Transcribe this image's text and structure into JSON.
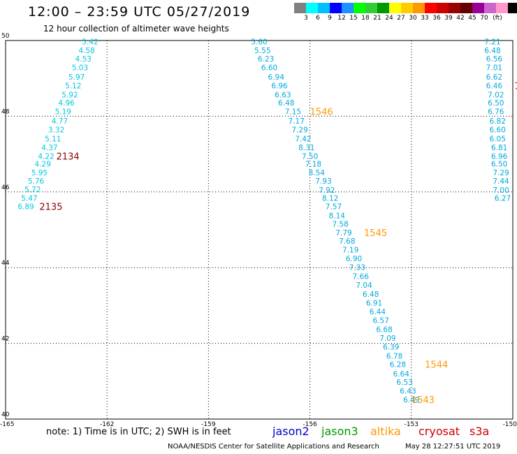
{
  "header": {
    "title": "12:00 – 23:59 UTC 05/27/2019",
    "subtitle": "12 hour collection of altimeter wave heights"
  },
  "legend": {
    "unit": "(ft)",
    "colors": [
      "#808080",
      "#00ffff",
      "#00bfff",
      "#0000ff",
      "#1e90ff",
      "#00ff00",
      "#32cd32",
      "#009900",
      "#ffff00",
      "#ffcc00",
      "#ff9900",
      "#ff0000",
      "#cc0000",
      "#990000",
      "#660000",
      "#990099",
      "#cc66cc",
      "#ff99cc",
      "#000000"
    ],
    "labels": [
      "3",
      "6",
      "9",
      "12",
      "15",
      "18",
      "21",
      "24",
      "27",
      "30",
      "33",
      "36",
      "39",
      "42",
      "45",
      "70"
    ]
  },
  "axes": {
    "lat_labels": [
      "50",
      "48",
      "46",
      "44",
      "42",
      "40"
    ],
    "lon_labels": [
      "-165",
      "-162",
      "-159",
      "-156",
      "-153",
      "-150"
    ]
  },
  "tracks": [
    {
      "satellite": "jason2",
      "color": "#00c8e0",
      "points": [
        {
          "lon": -162.5,
          "lat": 49.9,
          "swh": "5.42"
        },
        {
          "lon": -162.6,
          "lat": 49.67,
          "swh": "4.58"
        },
        {
          "lon": -162.7,
          "lat": 49.45,
          "swh": "4.53"
        },
        {
          "lon": -162.8,
          "lat": 49.22,
          "swh": "5.03"
        },
        {
          "lon": -162.9,
          "lat": 48.97,
          "swh": "5.97"
        },
        {
          "lon": -163.0,
          "lat": 48.74,
          "swh": "5.12"
        },
        {
          "lon": -163.1,
          "lat": 48.5,
          "swh": "5.92"
        },
        {
          "lon": -163.2,
          "lat": 48.28,
          "swh": "4.96"
        },
        {
          "lon": -163.3,
          "lat": 48.05,
          "swh": "5.19"
        },
        {
          "lon": -163.4,
          "lat": 47.8,
          "swh": "4.77"
        },
        {
          "lon": -163.5,
          "lat": 47.57,
          "swh": "3.32"
        },
        {
          "lon": -163.6,
          "lat": 47.33,
          "swh": "5.11"
        },
        {
          "lon": -163.7,
          "lat": 47.1,
          "swh": "4.37"
        },
        {
          "lon": -163.8,
          "lat": 46.87,
          "swh": "4.22"
        },
        {
          "lon": -163.9,
          "lat": 46.67,
          "swh": "4.29"
        },
        {
          "lon": -164.0,
          "lat": 46.44,
          "swh": "5.95"
        },
        {
          "lon": -164.1,
          "lat": 46.22,
          "swh": "5.76"
        },
        {
          "lon": -164.2,
          "lat": 46.0,
          "swh": "5.72"
        },
        {
          "lon": -164.3,
          "lat": 45.77,
          "swh": "5.47"
        },
        {
          "lon": -164.4,
          "lat": 45.54,
          "swh": "6.89"
        }
      ],
      "times": [
        {
          "lon": -163.5,
          "lat": 46.87,
          "text": "2134",
          "color": "#8b0000"
        },
        {
          "lon": -164.0,
          "lat": 45.54,
          "text": "2135",
          "color": "#8b0000"
        }
      ]
    },
    {
      "satellite": "jason2",
      "color": "#00aadd",
      "points": [
        {
          "lon": -157.5,
          "lat": 49.9,
          "swh": "5.60"
        },
        {
          "lon": -157.4,
          "lat": 49.67,
          "swh": "5.55"
        },
        {
          "lon": -157.3,
          "lat": 49.45,
          "swh": "6.23"
        },
        {
          "lon": -157.2,
          "lat": 49.22,
          "swh": "6.60"
        },
        {
          "lon": -157.0,
          "lat": 48.97,
          "swh": "6.94"
        },
        {
          "lon": -156.9,
          "lat": 48.74,
          "swh": "6.96"
        },
        {
          "lon": -156.8,
          "lat": 48.5,
          "swh": "6.63"
        },
        {
          "lon": -156.7,
          "lat": 48.28,
          "swh": "6.48"
        },
        {
          "lon": -156.5,
          "lat": 48.05,
          "swh": "7.15"
        },
        {
          "lon": -156.4,
          "lat": 47.8,
          "swh": "7.17"
        },
        {
          "lon": -156.3,
          "lat": 47.57,
          "swh": "7.29"
        },
        {
          "lon": -156.2,
          "lat": 47.33,
          "swh": "7.42"
        },
        {
          "lon": -156.1,
          "lat": 47.1,
          "swh": "8.31"
        },
        {
          "lon": -156.0,
          "lat": 46.87,
          "swh": "7.50"
        },
        {
          "lon": -155.9,
          "lat": 46.67,
          "swh": "7.18"
        },
        {
          "lon": -155.8,
          "lat": 46.44,
          "swh": "8.54"
        },
        {
          "lon": -155.6,
          "lat": 46.22,
          "swh": "7.93"
        },
        {
          "lon": -155.5,
          "lat": 45.98,
          "swh": "7.92"
        },
        {
          "lon": -155.4,
          "lat": 45.77,
          "swh": "8.12"
        },
        {
          "lon": -155.3,
          "lat": 45.54,
          "swh": "7.57"
        },
        {
          "lon": -155.2,
          "lat": 45.3,
          "swh": "8.14"
        },
        {
          "lon": -155.1,
          "lat": 45.08,
          "swh": "7.58"
        },
        {
          "lon": -155.0,
          "lat": 44.85,
          "swh": "7.79"
        },
        {
          "lon": -154.9,
          "lat": 44.63,
          "swh": "7.68"
        },
        {
          "lon": -154.8,
          "lat": 44.4,
          "swh": "7.19"
        },
        {
          "lon": -154.7,
          "lat": 44.17,
          "swh": "6.90"
        },
        {
          "lon": -154.6,
          "lat": 43.94,
          "swh": "7.33"
        },
        {
          "lon": -154.5,
          "lat": 43.7,
          "swh": "7.66"
        },
        {
          "lon": -154.4,
          "lat": 43.47,
          "swh": "7.04"
        },
        {
          "lon": -154.2,
          "lat": 43.23,
          "swh": "6.48"
        },
        {
          "lon": -154.1,
          "lat": 43.0,
          "swh": "6.91"
        },
        {
          "lon": -154.0,
          "lat": 42.77,
          "swh": "6.44"
        },
        {
          "lon": -153.9,
          "lat": 42.54,
          "swh": "6.57"
        },
        {
          "lon": -153.8,
          "lat": 42.3,
          "swh": "6.68"
        },
        {
          "lon": -153.7,
          "lat": 42.07,
          "swh": "7.09"
        },
        {
          "lon": -153.6,
          "lat": 41.84,
          "swh": "6.39"
        },
        {
          "lon": -153.5,
          "lat": 41.6,
          "swh": "6.78"
        },
        {
          "lon": -153.4,
          "lat": 41.37,
          "swh": "6.28"
        },
        {
          "lon": -153.3,
          "lat": 41.13,
          "swh": "6.64"
        },
        {
          "lon": -153.2,
          "lat": 40.9,
          "swh": "6.53"
        },
        {
          "lon": -153.1,
          "lat": 40.67,
          "swh": "6.43"
        },
        {
          "lon": -153.0,
          "lat": 40.44,
          "swh": "6.49"
        }
      ],
      "times": [
        {
          "lon": -156.0,
          "lat": 48.05,
          "text": "1546",
          "color": "#ff9900"
        },
        {
          "lon": -154.4,
          "lat": 44.85,
          "text": "1545",
          "color": "#ff9900"
        },
        {
          "lon": -152.6,
          "lat": 41.37,
          "text": "1544",
          "color": "#ff9900"
        },
        {
          "lon": -153.0,
          "lat": 40.44,
          "text": "1543",
          "color": "#ff9900"
        }
      ]
    },
    {
      "satellite": "jason2",
      "color": "#00aadd",
      "points": [
        {
          "lon": -150.6,
          "lat": 49.9,
          "swh": "7.21"
        },
        {
          "lon": -150.6,
          "lat": 49.67,
          "swh": "6.48"
        },
        {
          "lon": -150.55,
          "lat": 49.45,
          "swh": "6.56"
        },
        {
          "lon": -150.55,
          "lat": 49.22,
          "swh": "7.01"
        },
        {
          "lon": -150.55,
          "lat": 48.97,
          "swh": "6.62"
        },
        {
          "lon": -150.55,
          "lat": 48.74,
          "swh": "6.46"
        },
        {
          "lon": -150.5,
          "lat": 48.5,
          "swh": "7.02"
        },
        {
          "lon": -150.5,
          "lat": 48.28,
          "swh": "6.50"
        },
        {
          "lon": -150.5,
          "lat": 48.05,
          "swh": "6.76"
        },
        {
          "lon": -150.45,
          "lat": 47.8,
          "swh": "6.82"
        },
        {
          "lon": -150.45,
          "lat": 47.57,
          "swh": "6.60"
        },
        {
          "lon": -150.45,
          "lat": 47.33,
          "swh": "6.05"
        },
        {
          "lon": -150.4,
          "lat": 47.1,
          "swh": "6.81"
        },
        {
          "lon": -150.4,
          "lat": 46.87,
          "swh": "6.96"
        },
        {
          "lon": -150.4,
          "lat": 46.67,
          "swh": "6.50"
        },
        {
          "lon": -150.35,
          "lat": 46.44,
          "swh": "7.29"
        },
        {
          "lon": -150.35,
          "lat": 46.22,
          "swh": "7.44"
        },
        {
          "lon": -150.35,
          "lat": 45.98,
          "swh": "7.00"
        },
        {
          "lon": -150.3,
          "lat": 45.77,
          "swh": "6.27"
        }
      ],
      "times": [
        {
          "lon": -149.95,
          "lat": 48.74,
          "text": "1",
          "color": "#cc0000"
        }
      ]
    }
  ],
  "note": "note:  1) Time is in UTC;  2) SWH is in feet",
  "satellites": [
    {
      "name": "jason2",
      "color": "#0000cc",
      "left": 390
    },
    {
      "name": "jason3",
      "color": "#009900",
      "left": 460
    },
    {
      "name": "altika",
      "color": "#ff9900",
      "left": 530
    },
    {
      "name": "cryosat",
      "color": "#cc0000",
      "left": 599
    },
    {
      "name": "s3a",
      "color": "#cc0000",
      "left": 672
    }
  ],
  "footer": "NOAA/NESDIS Center for Satellite Applications and Research",
  "timestamp": "May 28 12:27:51 UTC 2019"
}
